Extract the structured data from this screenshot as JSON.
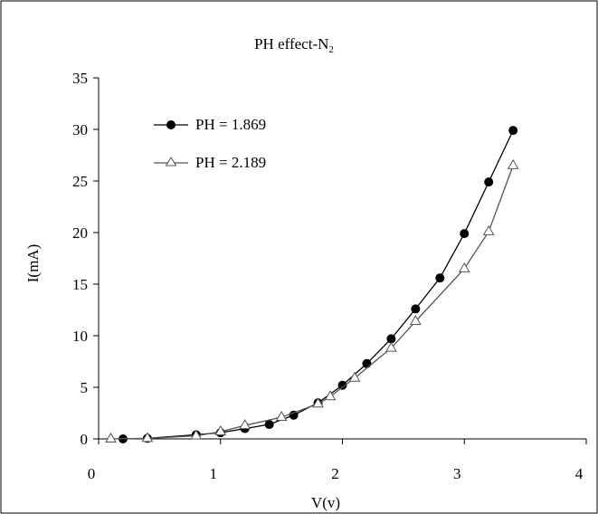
{
  "chart_data": {
    "type": "line",
    "title": "PH effect-N",
    "title_subscript": "2",
    "xlabel": "V(v)",
    "ylabel": "I(mA)",
    "xlim": [
      0,
      4
    ],
    "ylim": [
      0,
      35
    ],
    "x_ticks": [
      "0",
      "1",
      "2",
      "3",
      "4"
    ],
    "y_ticks": [
      "0",
      "5",
      "10",
      "15",
      "20",
      "25",
      "30",
      "35"
    ],
    "grid": false,
    "legend_position": "upper-left",
    "series": [
      {
        "name": "PH = 1.869",
        "marker": "filled-circle",
        "color": "#000000",
        "x": [
          0.2,
          0.4,
          0.8,
          1.0,
          1.2,
          1.4,
          1.6,
          1.8,
          2.0,
          2.2,
          2.4,
          2.6,
          2.8,
          3.0,
          3.2,
          3.4
        ],
        "y": [
          0.0,
          0.05,
          0.4,
          0.6,
          1.0,
          1.4,
          2.3,
          3.5,
          5.2,
          7.3,
          9.7,
          12.6,
          15.6,
          19.9,
          24.9,
          29.9
        ]
      },
      {
        "name": "PH = 2.189",
        "marker": "open-triangle",
        "color": "#555555",
        "x": [
          0.1,
          0.4,
          0.8,
          1.0,
          1.2,
          1.5,
          1.8,
          1.9,
          2.1,
          2.4,
          2.6,
          3.0,
          3.2,
          3.4
        ],
        "y": [
          0.0,
          0.05,
          0.3,
          0.7,
          1.3,
          2.1,
          3.4,
          4.1,
          5.9,
          8.8,
          11.4,
          16.5,
          20.1,
          26.5
        ]
      }
    ]
  }
}
